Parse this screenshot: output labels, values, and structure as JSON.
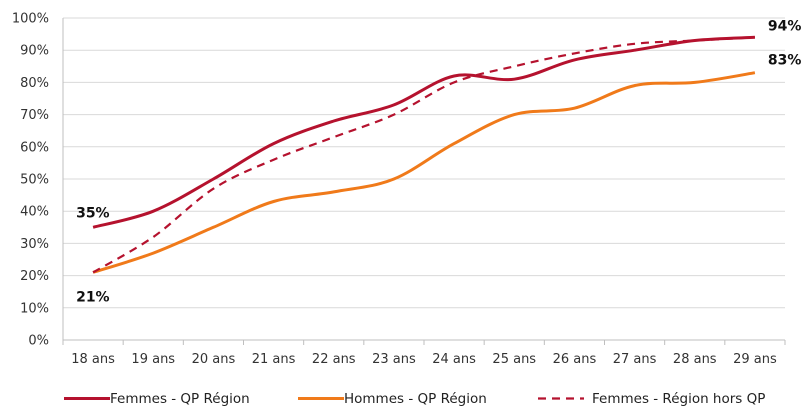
{
  "chart_data": {
    "type": "line",
    "title": "",
    "xlabel": "",
    "ylabel": "",
    "categories": [
      "18 ans",
      "19 ans",
      "20 ans",
      "21 ans",
      "22 ans",
      "23 ans",
      "24 ans",
      "25 ans",
      "26 ans",
      "27 ans",
      "28 ans",
      "29 ans"
    ],
    "y_ticks": [
      "0%",
      "10%",
      "20%",
      "30%",
      "40%",
      "50%",
      "60%",
      "70%",
      "80%",
      "90%",
      "100%"
    ],
    "ylim": [
      0,
      100
    ],
    "grid": true,
    "legend_position": "bottom",
    "series": [
      {
        "name": "Femmes - QP Région",
        "color": "#b5122e",
        "dash": false,
        "values": [
          35,
          40,
          50,
          61,
          68,
          73,
          82,
          81,
          87,
          90,
          93,
          94
        ]
      },
      {
        "name": "Hommes - QP Région",
        "color": "#f07a1a",
        "dash": false,
        "values": [
          21,
          27,
          35,
          43,
          46,
          50,
          61,
          70,
          72,
          79,
          80,
          83
        ]
      },
      {
        "name": "Femmes - Région hors QP",
        "color": "#b5122e",
        "dash": true,
        "values": [
          21,
          32,
          47,
          56,
          63,
          70,
          80,
          85,
          89,
          92,
          93,
          94
        ]
      }
    ],
    "annotations": [
      {
        "text": "35%",
        "x": "18 ans",
        "y": 35
      },
      {
        "text": "21%",
        "x": "18 ans",
        "y": 21
      },
      {
        "text": "94%",
        "x": "29 ans",
        "y": 94
      },
      {
        "text": "83%",
        "x": "29 ans",
        "y": 83
      }
    ]
  }
}
